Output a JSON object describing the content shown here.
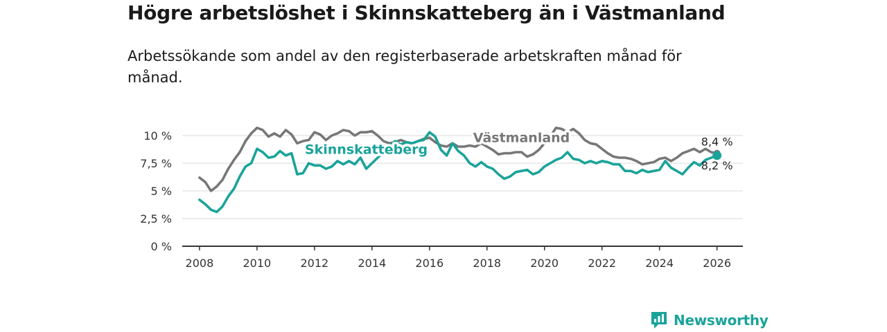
{
  "title": "Högre arbetslöshet i Skinnskatteberg än i Västmanland",
  "subtitle": "Arbetssökande som andel av den registerbaserade arbetskraften månad för månad.",
  "brand": {
    "name": "Newsworthy",
    "color": "#1aa39a"
  },
  "chart_data": {
    "type": "line",
    "title": "Högre arbetslöshet i Skinnskatteberg än i Västmanland",
    "xlabel": "",
    "ylabel": "",
    "xlim": [
      2007.4,
      2026.9
    ],
    "ylim": [
      0,
      11
    ],
    "y_ticks": [
      0,
      2.5,
      5,
      7.5,
      10
    ],
    "y_tick_labels": [
      "0 %",
      "2,5 %",
      "5 %",
      "7,5 %",
      "10 %"
    ],
    "x_ticks": [
      2008,
      2010,
      2012,
      2014,
      2016,
      2018,
      2020,
      2022,
      2024,
      2026
    ],
    "x_tick_labels": [
      "2008",
      "2010",
      "2012",
      "2014",
      "2016",
      "2018",
      "2020",
      "2022",
      "2024",
      "2026"
    ],
    "grid": true,
    "series": [
      {
        "name": "Västmanland",
        "color": "#777777",
        "end_label": "8,4 %",
        "points": [
          [
            2008.0,
            6.2
          ],
          [
            2008.2,
            5.8
          ],
          [
            2008.4,
            5.0
          ],
          [
            2008.6,
            5.4
          ],
          [
            2008.8,
            6.0
          ],
          [
            2009.0,
            7.0
          ],
          [
            2009.2,
            7.8
          ],
          [
            2009.4,
            8.5
          ],
          [
            2009.6,
            9.5
          ],
          [
            2009.8,
            10.2
          ],
          [
            2010.0,
            10.7
          ],
          [
            2010.2,
            10.5
          ],
          [
            2010.4,
            9.9
          ],
          [
            2010.6,
            10.2
          ],
          [
            2010.8,
            9.9
          ],
          [
            2011.0,
            10.5
          ],
          [
            2011.2,
            10.1
          ],
          [
            2011.4,
            9.3
          ],
          [
            2011.6,
            9.5
          ],
          [
            2011.8,
            9.6
          ],
          [
            2012.0,
            10.3
          ],
          [
            2012.2,
            10.1
          ],
          [
            2012.4,
            9.6
          ],
          [
            2012.6,
            10.0
          ],
          [
            2012.8,
            10.2
          ],
          [
            2013.0,
            10.5
          ],
          [
            2013.2,
            10.4
          ],
          [
            2013.4,
            10.0
          ],
          [
            2013.6,
            10.3
          ],
          [
            2013.8,
            10.3
          ],
          [
            2014.0,
            10.4
          ],
          [
            2014.2,
            10.0
          ],
          [
            2014.4,
            9.5
          ],
          [
            2014.6,
            9.3
          ],
          [
            2014.8,
            9.4
          ],
          [
            2015.0,
            9.6
          ],
          [
            2015.2,
            9.4
          ],
          [
            2015.4,
            9.3
          ],
          [
            2015.6,
            9.5
          ],
          [
            2015.8,
            9.7
          ],
          [
            2016.0,
            9.8
          ],
          [
            2016.2,
            9.4
          ],
          [
            2016.4,
            9.1
          ],
          [
            2016.6,
            9.0
          ],
          [
            2016.8,
            9.3
          ],
          [
            2017.0,
            9.0
          ],
          [
            2017.2,
            9.0
          ],
          [
            2017.4,
            9.1
          ],
          [
            2017.6,
            9.0
          ],
          [
            2017.8,
            9.3
          ],
          [
            2018.0,
            9.0
          ],
          [
            2018.2,
            8.7
          ],
          [
            2018.4,
            8.3
          ],
          [
            2018.6,
            8.4
          ],
          [
            2018.8,
            8.4
          ],
          [
            2019.0,
            8.5
          ],
          [
            2019.2,
            8.5
          ],
          [
            2019.4,
            8.1
          ],
          [
            2019.6,
            8.3
          ],
          [
            2019.8,
            8.7
          ],
          [
            2020.0,
            9.3
          ],
          [
            2020.2,
            9.9
          ],
          [
            2020.4,
            10.7
          ],
          [
            2020.6,
            10.6
          ],
          [
            2020.8,
            10.3
          ],
          [
            2021.0,
            10.6
          ],
          [
            2021.2,
            10.2
          ],
          [
            2021.4,
            9.6
          ],
          [
            2021.6,
            9.3
          ],
          [
            2021.8,
            9.2
          ],
          [
            2022.0,
            8.8
          ],
          [
            2022.2,
            8.4
          ],
          [
            2022.4,
            8.1
          ],
          [
            2022.6,
            8.0
          ],
          [
            2022.8,
            8.0
          ],
          [
            2023.0,
            7.9
          ],
          [
            2023.2,
            7.7
          ],
          [
            2023.4,
            7.4
          ],
          [
            2023.6,
            7.5
          ],
          [
            2023.8,
            7.6
          ],
          [
            2024.0,
            7.9
          ],
          [
            2024.2,
            8.0
          ],
          [
            2024.4,
            7.7
          ],
          [
            2024.6,
            8.0
          ],
          [
            2024.8,
            8.4
          ],
          [
            2025.0,
            8.6
          ],
          [
            2025.2,
            8.8
          ],
          [
            2025.4,
            8.5
          ],
          [
            2025.6,
            8.8
          ],
          [
            2025.8,
            8.5
          ],
          [
            2026.0,
            8.4
          ]
        ]
      },
      {
        "name": "Skinnskatteberg",
        "color": "#1aa39a",
        "end_label": "8,2 %",
        "points": [
          [
            2008.0,
            4.2
          ],
          [
            2008.2,
            3.8
          ],
          [
            2008.4,
            3.3
          ],
          [
            2008.6,
            3.1
          ],
          [
            2008.8,
            3.6
          ],
          [
            2009.0,
            4.5
          ],
          [
            2009.2,
            5.2
          ],
          [
            2009.4,
            6.3
          ],
          [
            2009.6,
            7.2
          ],
          [
            2009.8,
            7.5
          ],
          [
            2010.0,
            8.8
          ],
          [
            2010.2,
            8.5
          ],
          [
            2010.4,
            8.0
          ],
          [
            2010.6,
            8.1
          ],
          [
            2010.8,
            8.6
          ],
          [
            2011.0,
            8.2
          ],
          [
            2011.2,
            8.4
          ],
          [
            2011.4,
            6.5
          ],
          [
            2011.6,
            6.6
          ],
          [
            2011.8,
            7.5
          ],
          [
            2012.0,
            7.3
          ],
          [
            2012.2,
            7.3
          ],
          [
            2012.4,
            7.0
          ],
          [
            2012.6,
            7.2
          ],
          [
            2012.8,
            7.7
          ],
          [
            2013.0,
            7.4
          ],
          [
            2013.2,
            7.7
          ],
          [
            2013.4,
            7.4
          ],
          [
            2013.6,
            8.0
          ],
          [
            2013.8,
            7.0
          ],
          [
            2014.0,
            7.5
          ],
          [
            2014.2,
            8.0
          ],
          [
            2014.4,
            8.5
          ],
          [
            2014.6,
            9.0
          ],
          [
            2014.8,
            9.5
          ],
          [
            2015.0,
            9.2
          ],
          [
            2015.2,
            9.4
          ],
          [
            2015.4,
            9.3
          ],
          [
            2015.6,
            9.5
          ],
          [
            2015.8,
            9.6
          ],
          [
            2016.0,
            10.3
          ],
          [
            2016.2,
            9.9
          ],
          [
            2016.4,
            8.7
          ],
          [
            2016.6,
            8.2
          ],
          [
            2016.8,
            9.3
          ],
          [
            2017.0,
            8.6
          ],
          [
            2017.2,
            8.2
          ],
          [
            2017.4,
            7.5
          ],
          [
            2017.6,
            7.2
          ],
          [
            2017.8,
            7.6
          ],
          [
            2018.0,
            7.2
          ],
          [
            2018.2,
            7.0
          ],
          [
            2018.4,
            6.5
          ],
          [
            2018.6,
            6.1
          ],
          [
            2018.8,
            6.3
          ],
          [
            2019.0,
            6.7
          ],
          [
            2019.2,
            6.8
          ],
          [
            2019.4,
            6.9
          ],
          [
            2019.6,
            6.5
          ],
          [
            2019.8,
            6.7
          ],
          [
            2020.0,
            7.2
          ],
          [
            2020.2,
            7.5
          ],
          [
            2020.4,
            7.8
          ],
          [
            2020.6,
            8.0
          ],
          [
            2020.8,
            8.5
          ],
          [
            2021.0,
            7.9
          ],
          [
            2021.2,
            7.8
          ],
          [
            2021.4,
            7.5
          ],
          [
            2021.6,
            7.7
          ],
          [
            2021.8,
            7.5
          ],
          [
            2022.0,
            7.7
          ],
          [
            2022.2,
            7.6
          ],
          [
            2022.4,
            7.4
          ],
          [
            2022.6,
            7.4
          ],
          [
            2022.8,
            6.8
          ],
          [
            2023.0,
            6.8
          ],
          [
            2023.2,
            6.6
          ],
          [
            2023.4,
            6.9
          ],
          [
            2023.6,
            6.7
          ],
          [
            2023.8,
            6.8
          ],
          [
            2024.0,
            6.9
          ],
          [
            2024.2,
            7.7
          ],
          [
            2024.4,
            7.1
          ],
          [
            2024.6,
            6.8
          ],
          [
            2024.8,
            6.5
          ],
          [
            2025.0,
            7.1
          ],
          [
            2025.2,
            7.6
          ],
          [
            2025.4,
            7.3
          ],
          [
            2025.6,
            7.8
          ],
          [
            2025.8,
            8.0
          ],
          [
            2026.0,
            8.2
          ]
        ]
      }
    ]
  }
}
